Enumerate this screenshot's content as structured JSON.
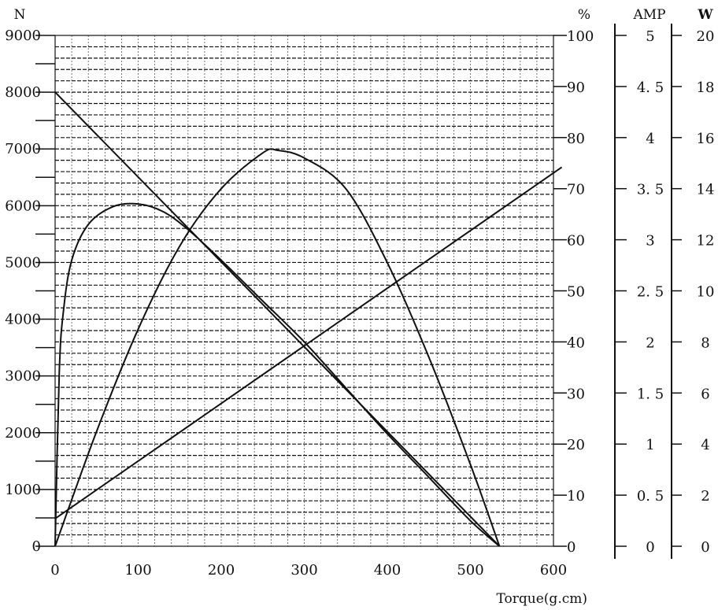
{
  "chart_data": {
    "type": "line",
    "xlabel": "Torque(g.cm)",
    "x_ticks": [
      "0",
      "100",
      "200",
      "300",
      "400",
      "500",
      "600"
    ],
    "xlim": [
      0,
      600
    ],
    "axes": {
      "speed": {
        "unit_label": "N",
        "ticks": [
          "0",
          "1000",
          "2000",
          "3000",
          "4000",
          "5000",
          "6000",
          "7000",
          "8000",
          "9000"
        ],
        "range": [
          0,
          9000
        ]
      },
      "efficiency": {
        "unit_label": "%",
        "ticks": [
          "0",
          "10",
          "20",
          "30",
          "40",
          "50",
          "60",
          "70",
          "80",
          "90",
          "100"
        ],
        "range": [
          0,
          100
        ]
      },
      "current": {
        "unit_label": "AMP",
        "ticks": [
          "0",
          "0. 5",
          "1",
          "1. 5",
          "2",
          "2. 5",
          "3",
          "3. 5",
          "4",
          "4. 5",
          "5"
        ],
        "range": [
          0,
          5
        ]
      },
      "power": {
        "unit_label": "W",
        "ticks": [
          "0",
          "2",
          "4",
          "6",
          "8",
          "10",
          "12",
          "14",
          "16",
          "18",
          "20"
        ],
        "range": [
          0,
          20
        ]
      }
    },
    "series": [
      {
        "axis": "speed",
        "points": [
          [
            0,
            8000
          ],
          [
            535,
            0
          ]
        ]
      },
      {
        "axis": "current",
        "points": [
          [
            0,
            0.27
          ],
          [
            610,
            3.71
          ]
        ]
      },
      {
        "axis": "efficiency",
        "points": [
          [
            0,
            0
          ],
          [
            5,
            34
          ],
          [
            10,
            46
          ],
          [
            20,
            56
          ],
          [
            40,
            63
          ],
          [
            70,
            66.5
          ],
          [
            100,
            67
          ],
          [
            130,
            65.5
          ],
          [
            160,
            62
          ],
          [
            200,
            56
          ],
          [
            250,
            48
          ],
          [
            300,
            40
          ],
          [
            350,
            31
          ],
          [
            400,
            22
          ],
          [
            450,
            13.5
          ],
          [
            500,
            5
          ],
          [
            535,
            0
          ]
        ]
      },
      {
        "axis": "power",
        "points": [
          [
            0,
            0
          ],
          [
            50,
            4.5
          ],
          [
            100,
            8.5
          ],
          [
            150,
            11.75
          ],
          [
            200,
            14.0
          ],
          [
            250,
            15.4
          ],
          [
            268,
            15.5
          ],
          [
            300,
            15.2
          ],
          [
            350,
            14.0
          ],
          [
            400,
            11.1
          ],
          [
            450,
            7.4
          ],
          [
            500,
            3.2
          ],
          [
            535,
            0
          ]
        ]
      }
    ]
  }
}
